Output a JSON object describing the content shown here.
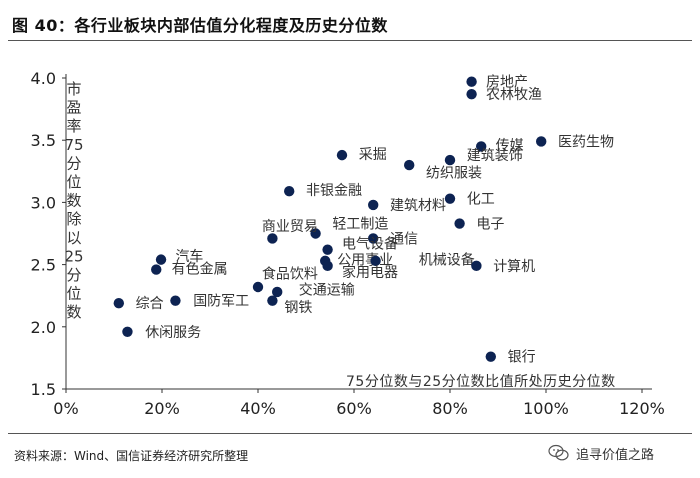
{
  "page": {
    "title": "图  40：各行业板块内部估值分化程度及历史分位数",
    "source": "资料来源：Wind、国信证券经济研究所整理",
    "watermark": "追寻价值之路"
  },
  "chart_data": {
    "type": "scatter",
    "title": "图  40：各行业板块内部估值分化程度及历史分位数",
    "xlabel": "75分位数与25分位数比值所处历史分位数",
    "ylabel": "市盈率75分位数除以25分位数",
    "xlim": [
      0,
      1.2
    ],
    "ylim": [
      1.5,
      4.0
    ],
    "xticks": [
      0,
      0.2,
      0.4,
      0.6,
      0.8,
      1.0,
      1.2
    ],
    "xtick_labels": [
      "0%",
      "20%",
      "40%",
      "60%",
      "80%",
      "100%",
      "120%"
    ],
    "yticks": [
      1.5,
      2.0,
      2.5,
      3.0,
      3.5,
      4.0
    ],
    "ytick_labels": [
      "1.5",
      "2.0",
      "2.5",
      "3.0",
      "3.5",
      "4.0"
    ],
    "grid": false,
    "marker_color": "#0d2352",
    "points": [
      {
        "label": "房地产",
        "x": 0.845,
        "y": 3.97,
        "lx": 0.875,
        "ly": 3.97
      },
      {
        "label": "农林牧渔",
        "x": 0.845,
        "y": 3.87,
        "lx": 0.875,
        "ly": 3.87
      },
      {
        "label": "医药生物",
        "x": 0.99,
        "y": 3.49,
        "lx": 1.025,
        "ly": 3.49
      },
      {
        "label": "传媒",
        "x": 0.865,
        "y": 3.45,
        "lx": 0.895,
        "ly": 3.46
      },
      {
        "label": "建筑装饰",
        "x": 0.8,
        "y": 3.34,
        "lx": 0.835,
        "ly": 3.38
      },
      {
        "label": "采掘",
        "x": 0.575,
        "y": 3.38,
        "lx": 0.61,
        "ly": 3.39
      },
      {
        "label": "纺织服装",
        "x": 0.715,
        "y": 3.3,
        "lx": 0.75,
        "ly": 3.24
      },
      {
        "label": "非银金融",
        "x": 0.465,
        "y": 3.09,
        "lx": 0.5,
        "ly": 3.1
      },
      {
        "label": "化工",
        "x": 0.8,
        "y": 3.03,
        "lx": 0.835,
        "ly": 3.03
      },
      {
        "label": "建筑材料",
        "x": 0.64,
        "y": 2.98,
        "lx": 0.675,
        "ly": 2.98
      },
      {
        "label": "电子",
        "x": 0.82,
        "y": 2.83,
        "lx": 0.855,
        "ly": 2.83
      },
      {
        "label": "轻工制造",
        "x": 0.52,
        "y": 2.75,
        "lx": 0.555,
        "ly": 2.83
      },
      {
        "label": "商业贸易",
        "x": 0.43,
        "y": 2.71,
        "lx": 0.408,
        "ly": 2.81
      },
      {
        "label": "通信",
        "x": 0.64,
        "y": 2.71,
        "lx": 0.675,
        "ly": 2.71
      },
      {
        "label": "电气设备",
        "x": 0.545,
        "y": 2.62,
        "lx": 0.575,
        "ly": 2.67
      },
      {
        "label": "公用事业",
        "x": 0.54,
        "y": 2.53,
        "lx": 0.565,
        "ly": 2.54
      },
      {
        "label": "机械设备",
        "x": 0.645,
        "y": 2.53,
        "lx": 0.735,
        "ly": 2.54
      },
      {
        "label": "计算机",
        "x": 0.855,
        "y": 2.49,
        "lx": 0.89,
        "ly": 2.49
      },
      {
        "label": "汽车",
        "x": 0.198,
        "y": 2.54,
        "lx": 0.228,
        "ly": 2.57
      },
      {
        "label": "有色金属",
        "x": 0.188,
        "y": 2.46,
        "lx": 0.22,
        "ly": 2.47
      },
      {
        "label": "家用电器",
        "x": 0.545,
        "y": 2.49,
        "lx": 0.575,
        "ly": 2.44
      },
      {
        "label": "食品饮料",
        "x": 0.4,
        "y": 2.32,
        "lx": 0.408,
        "ly": 2.43
      },
      {
        "label": "交通运输",
        "x": 0.44,
        "y": 2.28,
        "lx": 0.485,
        "ly": 2.3
      },
      {
        "label": "综合",
        "x": 0.11,
        "y": 2.19,
        "lx": 0.145,
        "ly": 2.19
      },
      {
        "label": "国防军工",
        "x": 0.228,
        "y": 2.21,
        "lx": 0.265,
        "ly": 2.21
      },
      {
        "label": "钢铁",
        "x": 0.43,
        "y": 2.21,
        "lx": 0.455,
        "ly": 2.16
      },
      {
        "label": "休闲服务",
        "x": 0.128,
        "y": 1.96,
        "lx": 0.165,
        "ly": 1.96
      },
      {
        "label": "银行",
        "x": 0.885,
        "y": 1.76,
        "lx": 0.92,
        "ly": 1.76
      }
    ]
  }
}
